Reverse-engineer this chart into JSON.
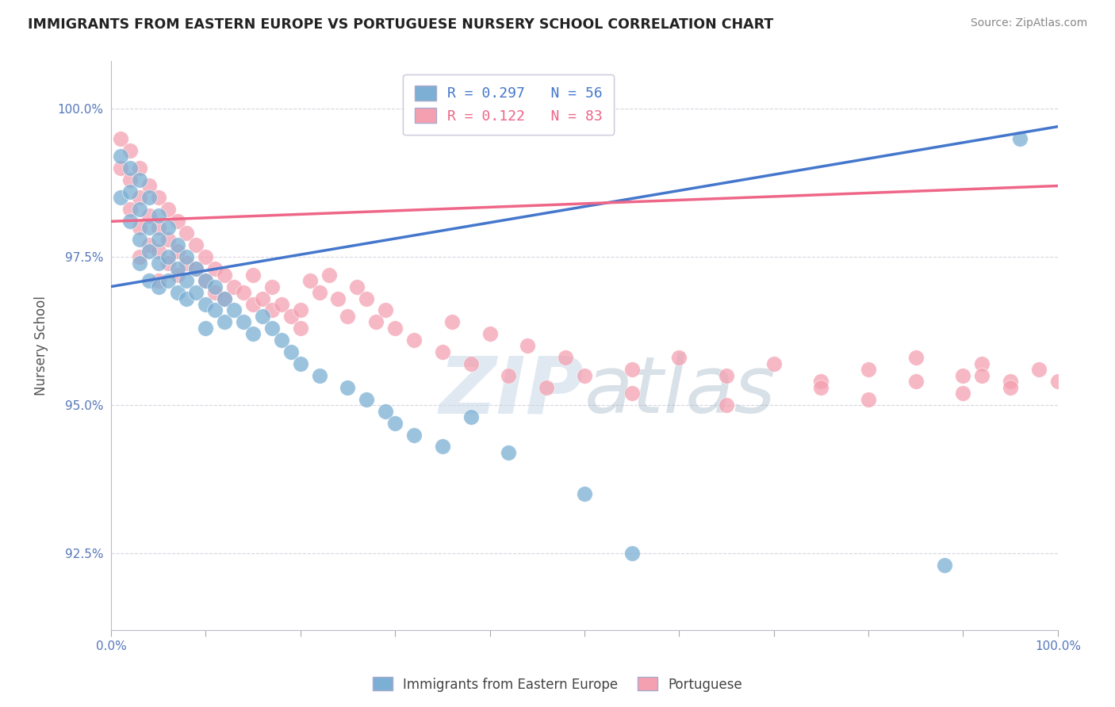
{
  "title": "IMMIGRANTS FROM EASTERN EUROPE VS PORTUGUESE NURSERY SCHOOL CORRELATION CHART",
  "source": "Source: ZipAtlas.com",
  "ylabel": "Nursery School",
  "xlim": [
    0,
    100
  ],
  "ylim": [
    91.2,
    100.8
  ],
  "yticks": [
    92.5,
    95.0,
    97.5,
    100.0
  ],
  "ytick_labels": [
    "92.5%",
    "95.0%",
    "97.5%",
    "100.0%"
  ],
  "xtick_labels": [
    "0.0%",
    "100.0%"
  ],
  "legend_blue_label": "R = 0.297   N = 56",
  "legend_pink_label": "R = 0.122   N = 83",
  "legend_label_1": "Immigrants from Eastern Europe",
  "legend_label_2": "Portuguese",
  "blue_color": "#7BAFD4",
  "pink_color": "#F4A0B0",
  "blue_line_color": "#4477CC",
  "pink_line_color": "#EE6688",
  "axis_color": "#5577BB",
  "blue_trendline": [
    0,
    100,
    97.0,
    99.7
  ],
  "pink_trendline": [
    0,
    100,
    98.1,
    98.7
  ],
  "blue_x": [
    1,
    1,
    2,
    2,
    2,
    3,
    3,
    3,
    3,
    4,
    4,
    4,
    4,
    5,
    5,
    5,
    5,
    6,
    6,
    6,
    7,
    7,
    7,
    8,
    8,
    8,
    9,
    9,
    10,
    10,
    10,
    11,
    11,
    12,
    12,
    13,
    14,
    15,
    16,
    17,
    18,
    19,
    20,
    22,
    25,
    27,
    29,
    30,
    32,
    35,
    38,
    42,
    50,
    55,
    88,
    96
  ],
  "blue_y": [
    99.2,
    98.5,
    99.0,
    98.6,
    98.1,
    98.8,
    98.3,
    97.8,
    97.4,
    98.5,
    98.0,
    97.6,
    97.1,
    98.2,
    97.8,
    97.4,
    97.0,
    98.0,
    97.5,
    97.1,
    97.7,
    97.3,
    96.9,
    97.5,
    97.1,
    96.8,
    97.3,
    96.9,
    97.1,
    96.7,
    96.3,
    97.0,
    96.6,
    96.8,
    96.4,
    96.6,
    96.4,
    96.2,
    96.5,
    96.3,
    96.1,
    95.9,
    95.7,
    95.5,
    95.3,
    95.1,
    94.9,
    94.7,
    94.5,
    94.3,
    94.8,
    94.2,
    93.5,
    92.5,
    92.3,
    99.5
  ],
  "pink_x": [
    1,
    1,
    2,
    2,
    2,
    3,
    3,
    3,
    3,
    4,
    4,
    4,
    5,
    5,
    5,
    5,
    6,
    6,
    6,
    7,
    7,
    7,
    8,
    8,
    9,
    9,
    10,
    10,
    11,
    11,
    12,
    12,
    13,
    14,
    15,
    15,
    16,
    17,
    17,
    18,
    19,
    20,
    20,
    21,
    22,
    23,
    24,
    25,
    26,
    27,
    28,
    29,
    30,
    32,
    35,
    36,
    38,
    40,
    42,
    44,
    46,
    48,
    50,
    55,
    60,
    65,
    70,
    75,
    80,
    85,
    90,
    92,
    95,
    98,
    100,
    55,
    65,
    75,
    80,
    85,
    90,
    92,
    95
  ],
  "pink_y": [
    99.5,
    99.0,
    99.3,
    98.8,
    98.3,
    99.0,
    98.5,
    98.0,
    97.5,
    98.7,
    98.2,
    97.7,
    98.5,
    98.0,
    97.6,
    97.1,
    98.3,
    97.8,
    97.4,
    98.1,
    97.6,
    97.2,
    97.9,
    97.4,
    97.7,
    97.3,
    97.5,
    97.1,
    97.3,
    96.9,
    97.2,
    96.8,
    97.0,
    96.9,
    97.2,
    96.7,
    96.8,
    97.0,
    96.6,
    96.7,
    96.5,
    96.6,
    96.3,
    97.1,
    96.9,
    97.2,
    96.8,
    96.5,
    97.0,
    96.8,
    96.4,
    96.6,
    96.3,
    96.1,
    95.9,
    96.4,
    95.7,
    96.2,
    95.5,
    96.0,
    95.3,
    95.8,
    95.5,
    95.6,
    95.8,
    95.5,
    95.7,
    95.4,
    95.6,
    95.8,
    95.5,
    95.7,
    95.4,
    95.6,
    95.4,
    95.2,
    95.0,
    95.3,
    95.1,
    95.4,
    95.2,
    95.5,
    95.3
  ]
}
